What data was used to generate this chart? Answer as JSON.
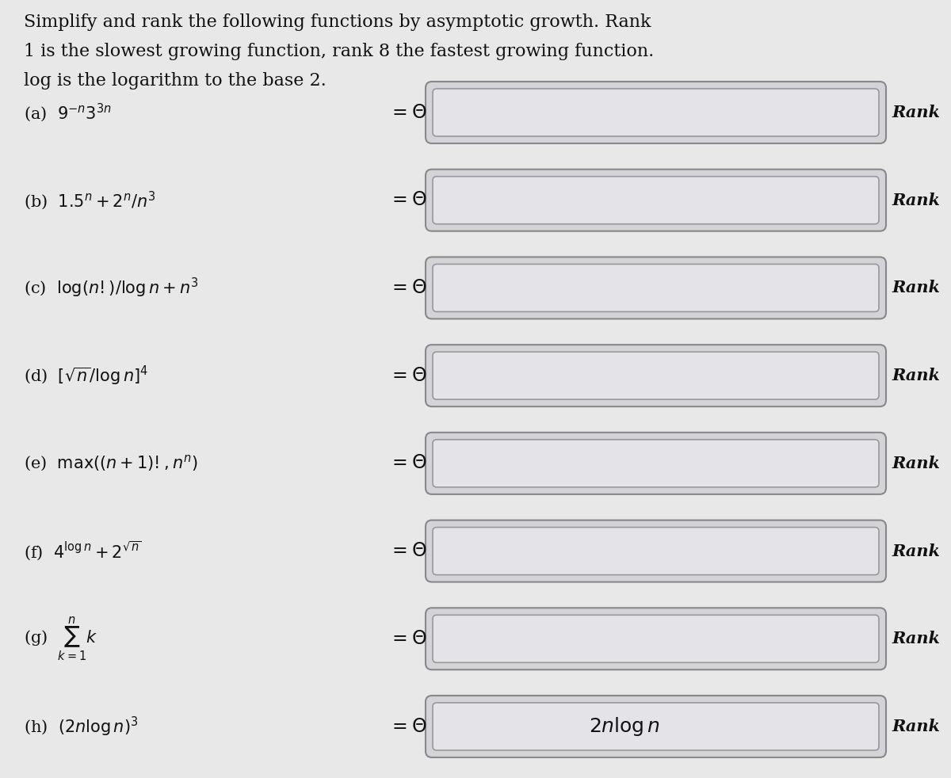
{
  "background_color": "#e8e8e8",
  "title_lines": [
    "Simplify and rank the following functions by asymptotic growth. Rank",
    "1 is the slowest growing function, rank 8 the fastest growing function.",
    "log is the logarithm to the base 2."
  ],
  "items": [
    {
      "label": "(a)  $9^{-n} 3^{3n}$",
      "box_text": "",
      "rank_text": "Rank"
    },
    {
      "label": "(b)  $1.5^n + 2^n/n^3$",
      "box_text": "",
      "rank_text": "Rank"
    },
    {
      "label": "(c)  $\\log(n!)/\\log n + n^3$",
      "box_text": "",
      "rank_text": "Rank"
    },
    {
      "label": "(d)  $[\\sqrt{n}/\\log n]^4$",
      "box_text": "",
      "rank_text": "Rank"
    },
    {
      "label": "(e)  $\\max((n+1)!, n^n)$",
      "box_text": "",
      "rank_text": "Rank"
    },
    {
      "label": "(f)  $4^{\\log n} + 2^{\\sqrt{n}}$",
      "box_text": "",
      "rank_text": "Rank"
    },
    {
      "label": "(g)  $\\sum_{k=1}^{n} k$",
      "box_text": "",
      "rank_text": "Rank"
    },
    {
      "label": "(h)  $(2n\\log n)^3$",
      "box_text": "$2n \\log n$",
      "rank_text": "Rank"
    }
  ],
  "box_outer_fill": "#d4d4d8",
  "box_inner_fill": "#e4e4e8",
  "box_edge_outer": "#888888",
  "box_edge_inner": "#999999",
  "text_color": "#111111",
  "rank_color": "#111111",
  "font_size_title": 16,
  "font_size_label": 15,
  "font_size_equals": 17,
  "font_size_rank": 15,
  "font_size_box_text": 18
}
